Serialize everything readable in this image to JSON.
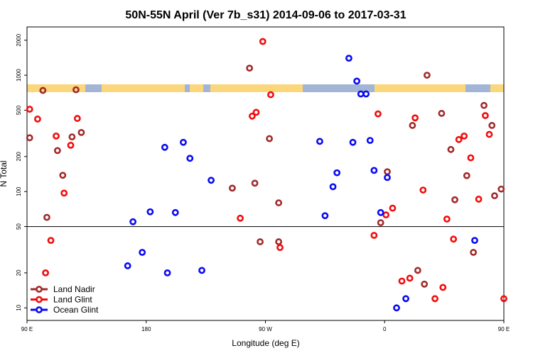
{
  "chart_data": {
    "type": "scatter",
    "title": "50N-55N April (Ver 7b_s31)   2014-09-06 to 2017-03-31",
    "xlabel": "Longitude (deg E)",
    "ylabel": "N Total",
    "x_axis": {
      "range_deg_east": [
        90,
        450
      ],
      "ticks": [
        {
          "value": 90,
          "label": "90 E"
        },
        {
          "value": 180,
          "label": "180"
        },
        {
          "value": 270,
          "label": "90 W"
        },
        {
          "value": 360,
          "label": "0"
        },
        {
          "value": 450,
          "label": "90 E"
        },
        {
          "value": 540,
          "label": "180"
        }
      ]
    },
    "y_axis": {
      "scale": "log",
      "ticks": [
        {
          "value": 10,
          "label": "10"
        },
        {
          "value": 20,
          "label": "20"
        },
        {
          "value": 50,
          "label": "50"
        },
        {
          "value": 100,
          "label": "100"
        },
        {
          "value": 200,
          "label": "200"
        },
        {
          "value": 500,
          "label": "500"
        },
        {
          "value": 1000,
          "label": "1000"
        },
        {
          "value": 2000,
          "label": "2000"
        }
      ],
      "reference_line": 50
    },
    "land_band": {
      "land_color": "#fbd67a",
      "ocean_color": "#a3b5d6"
    },
    "legend_position": "bottom-left",
    "series": [
      {
        "name": "Land Nadir",
        "color": "#a12b2b",
        "points": [
          {
            "x": 92,
            "y": 290
          },
          {
            "x": 102,
            "y": 740
          },
          {
            "x": 105,
            "y": 60
          },
          {
            "x": 113,
            "y": 225
          },
          {
            "x": 117,
            "y": 138
          },
          {
            "x": 124,
            "y": 295
          },
          {
            "x": 127,
            "y": 750
          },
          {
            "x": 131,
            "y": 322
          },
          {
            "x": 245,
            "y": 107
          },
          {
            "x": 258,
            "y": 1150
          },
          {
            "x": 262,
            "y": 118
          },
          {
            "x": 266,
            "y": 37
          },
          {
            "x": 273,
            "y": 285
          },
          {
            "x": 280,
            "y": 80
          },
          {
            "x": 280,
            "y": 37
          },
          {
            "x": 357,
            "y": 54
          },
          {
            "x": 362,
            "y": 148
          },
          {
            "x": 381,
            "y": 370
          },
          {
            "x": 385,
            "y": 21
          },
          {
            "x": 390,
            "y": 16
          },
          {
            "x": 392,
            "y": 1000
          },
          {
            "x": 403,
            "y": 470
          },
          {
            "x": 410,
            "y": 230
          },
          {
            "x": 413,
            "y": 85
          },
          {
            "x": 422,
            "y": 137
          },
          {
            "x": 427,
            "y": 30
          },
          {
            "x": 435,
            "y": 550
          },
          {
            "x": 441,
            "y": 370
          },
          {
            "x": 443,
            "y": 92
          },
          {
            "x": 448,
            "y": 105
          },
          {
            "x": 455,
            "y": 282
          },
          {
            "x": 461,
            "y": 740
          },
          {
            "x": 464,
            "y": 60
          },
          {
            "x": 472,
            "y": 225
          },
          {
            "x": 476,
            "y": 138
          },
          {
            "x": 482,
            "y": 295
          },
          {
            "x": 486,
            "y": 750
          },
          {
            "x": 490,
            "y": 322
          }
        ]
      },
      {
        "name": "Land Glint",
        "color": "#f20c0c",
        "points": [
          {
            "x": 92,
            "y": 510
          },
          {
            "x": 98,
            "y": 420
          },
          {
            "x": 104,
            "y": 20
          },
          {
            "x": 108,
            "y": 38
          },
          {
            "x": 112,
            "y": 300
          },
          {
            "x": 118,
            "y": 97
          },
          {
            "x": 123,
            "y": 250
          },
          {
            "x": 128,
            "y": 425
          },
          {
            "x": 251,
            "y": 59
          },
          {
            "x": 260,
            "y": 445
          },
          {
            "x": 263,
            "y": 480
          },
          {
            "x": 268,
            "y": 1950
          },
          {
            "x": 274,
            "y": 680
          },
          {
            "x": 281,
            "y": 33
          },
          {
            "x": 352,
            "y": 42
          },
          {
            "x": 355,
            "y": 465
          },
          {
            "x": 361,
            "y": 63
          },
          {
            "x": 366,
            "y": 72
          },
          {
            "x": 373,
            "y": 17
          },
          {
            "x": 379,
            "y": 18
          },
          {
            "x": 383,
            "y": 430
          },
          {
            "x": 389,
            "y": 103
          },
          {
            "x": 398,
            "y": 12
          },
          {
            "x": 404,
            "y": 15
          },
          {
            "x": 407,
            "y": 58
          },
          {
            "x": 412,
            "y": 39
          },
          {
            "x": 416,
            "y": 280
          },
          {
            "x": 420,
            "y": 300
          },
          {
            "x": 425,
            "y": 195
          },
          {
            "x": 431,
            "y": 86
          },
          {
            "x": 436,
            "y": 450
          },
          {
            "x": 439,
            "y": 310
          },
          {
            "x": 452,
            "y": 12
          },
          {
            "x": 457,
            "y": 515
          },
          {
            "x": 463,
            "y": 20
          },
          {
            "x": 467,
            "y": 38
          },
          {
            "x": 471,
            "y": 300
          },
          {
            "x": 477,
            "y": 97
          },
          {
            "x": 482,
            "y": 250
          },
          {
            "x": 487,
            "y": 425
          }
        ]
      },
      {
        "name": "Ocean Glint",
        "color": "#0a0af2",
        "points": [
          {
            "x": 166,
            "y": 23
          },
          {
            "x": 170,
            "y": 55
          },
          {
            "x": 177,
            "y": 30
          },
          {
            "x": 183,
            "y": 67
          },
          {
            "x": 194,
            "y": 240
          },
          {
            "x": 196,
            "y": 20
          },
          {
            "x": 202,
            "y": 66
          },
          {
            "x": 208,
            "y": 265
          },
          {
            "x": 213,
            "y": 193
          },
          {
            "x": 222,
            "y": 21
          },
          {
            "x": 229,
            "y": 125
          },
          {
            "x": 311,
            "y": 270
          },
          {
            "x": 315,
            "y": 62
          },
          {
            "x": 321,
            "y": 110
          },
          {
            "x": 324,
            "y": 145
          },
          {
            "x": 333,
            "y": 1400
          },
          {
            "x": 336,
            "y": 265
          },
          {
            "x": 339,
            "y": 890
          },
          {
            "x": 342,
            "y": 690
          },
          {
            "x": 346,
            "y": 690
          },
          {
            "x": 349,
            "y": 275
          },
          {
            "x": 352,
            "y": 152
          },
          {
            "x": 357,
            "y": 66
          },
          {
            "x": 362,
            "y": 132
          },
          {
            "x": 369,
            "y": 10
          },
          {
            "x": 376,
            "y": 12
          },
          {
            "x": 428,
            "y": 38
          },
          {
            "x": 521,
            "y": 23
          },
          {
            "x": 525,
            "y": 55
          },
          {
            "x": 532,
            "y": 30
          }
        ]
      }
    ]
  }
}
